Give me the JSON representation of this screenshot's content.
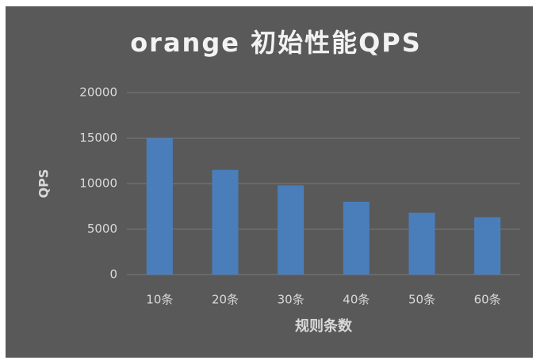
{
  "chart_data": {
    "type": "bar",
    "title": "orange 初始性能QPS",
    "x_label": "规则条数",
    "y_label": "QPS",
    "categories": [
      "10条",
      "20条",
      "30条",
      "40条",
      "50条",
      "60条"
    ],
    "values": [
      15000,
      11500,
      9800,
      8000,
      6800,
      6300
    ],
    "color": "#4a7ebb",
    "ylim": [
      0,
      20000
    ],
    "yticks": [
      0,
      5000,
      10000,
      15000,
      20000
    ],
    "grid": true
  }
}
